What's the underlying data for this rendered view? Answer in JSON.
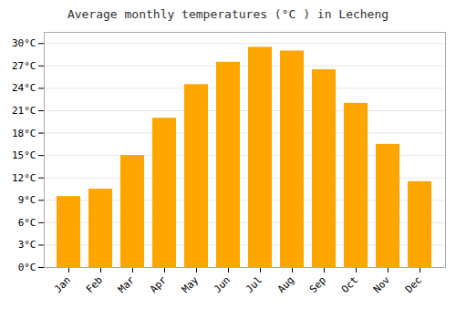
{
  "chart_data": {
    "type": "bar",
    "title": "Average monthly temperatures (°C ) in Lecheng",
    "categories": [
      "Jan",
      "Feb",
      "Mar",
      "Apr",
      "May",
      "Jun",
      "Jul",
      "Aug",
      "Sep",
      "Oct",
      "Nov",
      "Dec"
    ],
    "values": [
      9.5,
      10.5,
      15.0,
      20.0,
      24.5,
      27.5,
      29.5,
      29.0,
      26.5,
      22.0,
      16.5,
      11.5
    ],
    "color": "#FFA500",
    "ylim": [
      0,
      31.5
    ],
    "yticks": [
      {
        "value": 0,
        "label": "0°C"
      },
      {
        "value": 3,
        "label": "3°C"
      },
      {
        "value": 6,
        "label": "6°C"
      },
      {
        "value": 9,
        "label": "9°C"
      },
      {
        "value": 12,
        "label": "12°C"
      },
      {
        "value": 15,
        "label": "15°C"
      },
      {
        "value": 18,
        "label": "18°C"
      },
      {
        "value": 21,
        "label": "21°C"
      },
      {
        "value": 24,
        "label": "24°C"
      },
      {
        "value": 27,
        "label": "27°C"
      },
      {
        "value": 30,
        "label": "30°C"
      }
    ],
    "grid": true
  }
}
